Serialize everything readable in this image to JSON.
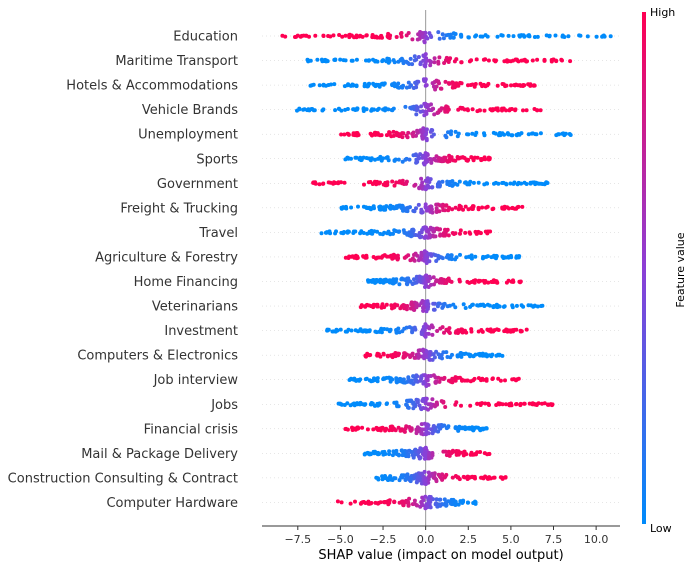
{
  "chart_data": {
    "type": "scatter",
    "subtype": "shap-beeswarm",
    "xlabel": "SHAP value (impact on model output)",
    "xlim": [
      -9.6,
      11.4
    ],
    "xticks": [
      -7.5,
      -5.0,
      -2.5,
      0.0,
      2.5,
      5.0,
      7.5,
      10.0
    ],
    "xtick_labels": [
      "−7.5",
      "−5.0",
      "−2.5",
      "0.0",
      "2.5",
      "5.0",
      "7.5",
      "10.0"
    ],
    "colorbar": {
      "label": "Feature value",
      "high": "High",
      "low": "Low",
      "high_color": "#ff0052",
      "low_color": "#008bfb"
    },
    "features": [
      {
        "name": "Education",
        "min": -8.5,
        "max": 10.9,
        "direction": "high-negative"
      },
      {
        "name": "Maritime Transport",
        "min": -7.0,
        "max": 8.5,
        "direction": "high-positive"
      },
      {
        "name": "Hotels & Accommodations",
        "min": -6.8,
        "max": 6.8,
        "direction": "high-positive"
      },
      {
        "name": "Vehicle Brands",
        "min": -7.6,
        "max": 6.8,
        "direction": "high-positive"
      },
      {
        "name": "Unemployment",
        "min": -5.0,
        "max": 8.6,
        "direction": "high-negative"
      },
      {
        "name": "Sports",
        "min": -4.9,
        "max": 3.8,
        "direction": "high-positive"
      },
      {
        "name": "Government",
        "min": -6.8,
        "max": 7.2,
        "direction": "high-negative"
      },
      {
        "name": "Freight & Trucking",
        "min": -5.0,
        "max": 5.7,
        "direction": "high-positive"
      },
      {
        "name": "Travel",
        "min": -6.2,
        "max": 3.8,
        "direction": "high-positive"
      },
      {
        "name": "Agriculture & Forestry",
        "min": -4.7,
        "max": 5.7,
        "direction": "high-negative"
      },
      {
        "name": "Home Financing",
        "min": -3.4,
        "max": 6.0,
        "direction": "high-positive"
      },
      {
        "name": "Veterinarians",
        "min": -3.9,
        "max": 7.0,
        "direction": "high-negative"
      },
      {
        "name": "Investment",
        "min": -5.8,
        "max": 6.3,
        "direction": "high-positive"
      },
      {
        "name": "Computers & Electronics",
        "min": -3.6,
        "max": 4.6,
        "direction": "high-negative"
      },
      {
        "name": "Job interview",
        "min": -4.5,
        "max": 5.5,
        "direction": "high-positive"
      },
      {
        "name": "Jobs",
        "min": -5.6,
        "max": 7.6,
        "direction": "high-positive"
      },
      {
        "name": "Financial crisis",
        "min": -4.8,
        "max": 3.7,
        "direction": "high-negative"
      },
      {
        "name": "Mail & Package Delivery",
        "min": -4.0,
        "max": 3.8,
        "direction": "high-positive"
      },
      {
        "name": "Construction Consulting & Contract",
        "min": -3.0,
        "max": 4.8,
        "direction": "high-positive"
      },
      {
        "name": "Computer Hardware",
        "min": -5.2,
        "max": 3.0,
        "direction": "high-negative"
      }
    ]
  }
}
